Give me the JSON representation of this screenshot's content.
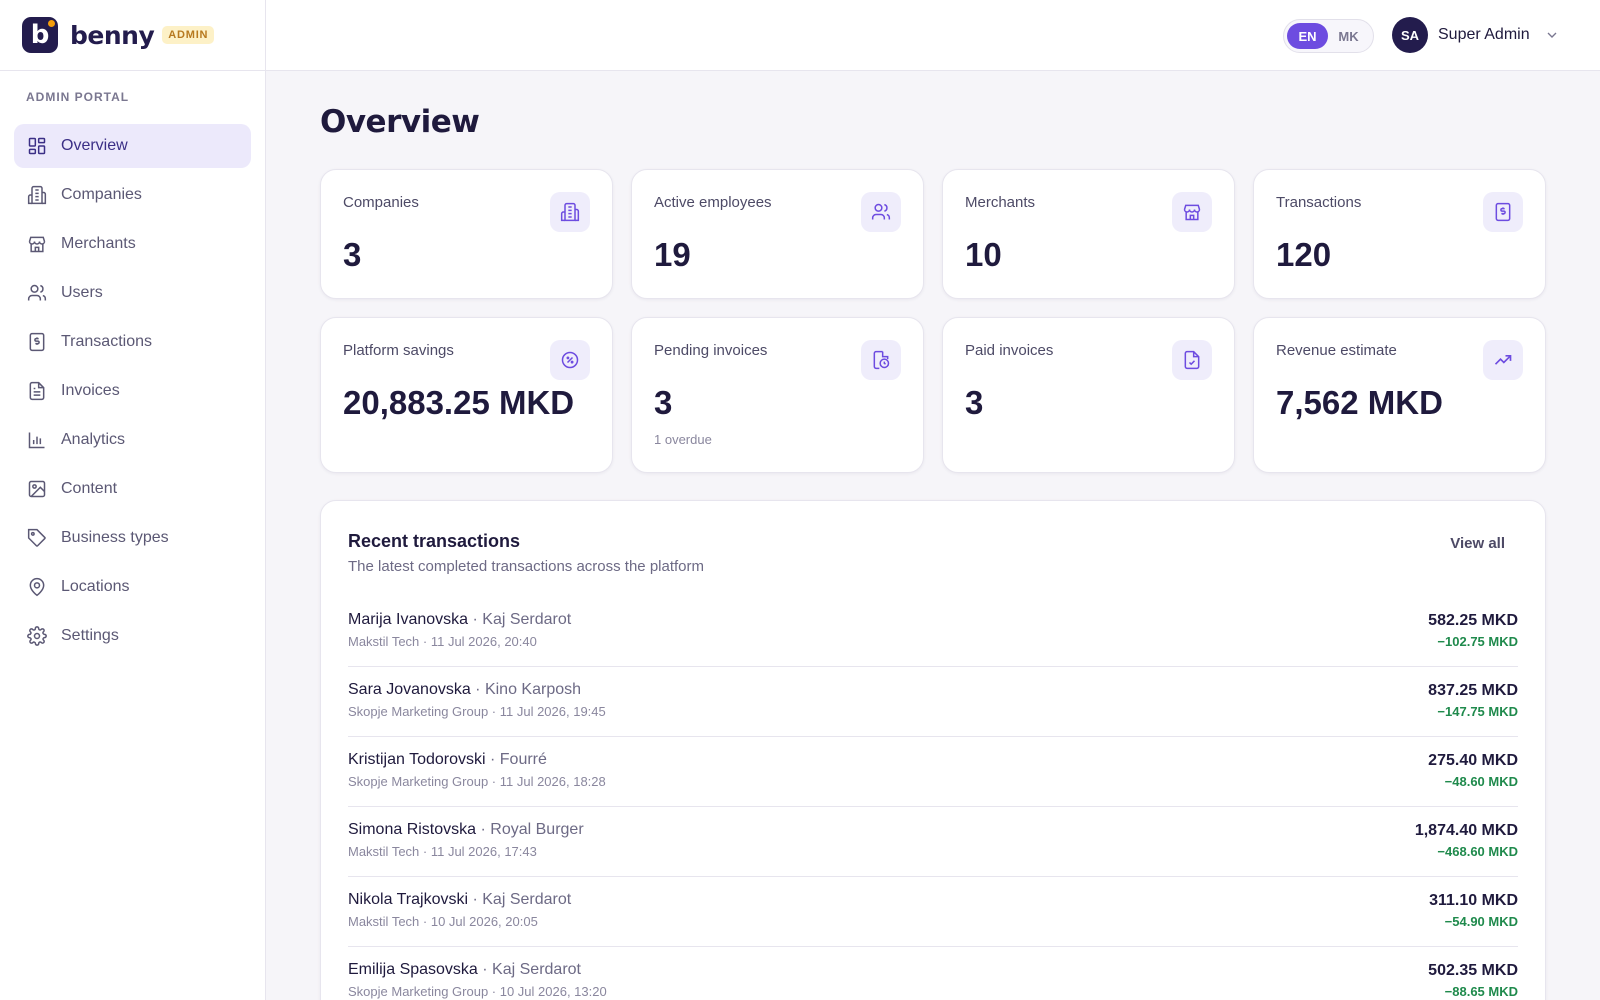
{
  "brand": {
    "name": "benny",
    "logo_letter": "b",
    "badge": "ADMIN"
  },
  "sidebar": {
    "section": "ADMIN PORTAL",
    "items": [
      {
        "label": "Overview",
        "icon": "grid-icon",
        "active": true
      },
      {
        "label": "Companies",
        "icon": "building-icon"
      },
      {
        "label": "Merchants",
        "icon": "store-icon"
      },
      {
        "label": "Users",
        "icon": "users-icon"
      },
      {
        "label": "Transactions",
        "icon": "receipt-icon"
      },
      {
        "label": "Invoices",
        "icon": "document-icon"
      },
      {
        "label": "Analytics",
        "icon": "bar-chart-icon"
      },
      {
        "label": "Content",
        "icon": "image-icon"
      },
      {
        "label": "Business types",
        "icon": "tag-icon"
      },
      {
        "label": "Locations",
        "icon": "map-pin-icon"
      },
      {
        "label": "Settings",
        "icon": "gear-icon"
      }
    ]
  },
  "topbar": {
    "languages": [
      "EN",
      "MK"
    ],
    "active_language": "EN",
    "user": {
      "initials": "SA",
      "name": "Super Admin"
    }
  },
  "page": {
    "title": "Overview"
  },
  "stats": [
    {
      "label": "Companies",
      "value": "3",
      "icon": "building-icon"
    },
    {
      "label": "Active employees",
      "value": "19",
      "icon": "users-icon"
    },
    {
      "label": "Merchants",
      "value": "10",
      "icon": "store-icon"
    },
    {
      "label": "Transactions",
      "value": "120",
      "icon": "receipt-icon"
    },
    {
      "label": "Platform savings",
      "value": "20,883.25 MKD",
      "icon": "percent-badge-icon"
    },
    {
      "label": "Pending invoices",
      "value": "3",
      "sub": "1 overdue",
      "icon": "file-clock-icon"
    },
    {
      "label": "Paid invoices",
      "value": "3",
      "icon": "file-check-icon"
    },
    {
      "label": "Revenue estimate",
      "value": "7,562 MKD",
      "icon": "trending-up-icon"
    }
  ],
  "recent": {
    "title": "Recent transactions",
    "subtitle": "The latest completed transactions across the platform",
    "view_all": "View all",
    "rows": [
      {
        "name": "Marija Ivanovska",
        "merchant": "Kaj Serdarot",
        "meta": "Makstil Tech · 11 Jul 2026, 20:40",
        "amount": "582.25 MKD",
        "saving": "−102.75 MKD"
      },
      {
        "name": "Sara Jovanovska",
        "merchant": "Kino Karposh",
        "meta": "Skopje Marketing Group · 11 Jul 2026, 19:45",
        "amount": "837.25 MKD",
        "saving": "−147.75 MKD"
      },
      {
        "name": "Kristijan Todorovski",
        "merchant": "Fourré",
        "meta": "Skopje Marketing Group · 11 Jul 2026, 18:28",
        "amount": "275.40 MKD",
        "saving": "−48.60 MKD"
      },
      {
        "name": "Simona Ristovska",
        "merchant": "Royal Burger",
        "meta": "Makstil Tech · 11 Jul 2026, 17:43",
        "amount": "1,874.40 MKD",
        "saving": "−468.60 MKD"
      },
      {
        "name": "Nikola Trajkovski",
        "merchant": "Kaj Serdarot",
        "meta": "Makstil Tech · 10 Jul 2026, 20:05",
        "amount": "311.10 MKD",
        "saving": "−54.90 MKD"
      },
      {
        "name": "Emilija Spasovska",
        "merchant": "Kaj Serdarot",
        "meta": "Skopje Marketing Group · 10 Jul 2026, 13:20",
        "amount": "502.35 MKD",
        "saving": "−88.65 MKD"
      }
    ]
  },
  "colors": {
    "accent": "#6d4ce0",
    "brand_dark": "#231c4d",
    "saving_green": "#1f8a4c",
    "badge_bg": "#fdf1c7"
  }
}
